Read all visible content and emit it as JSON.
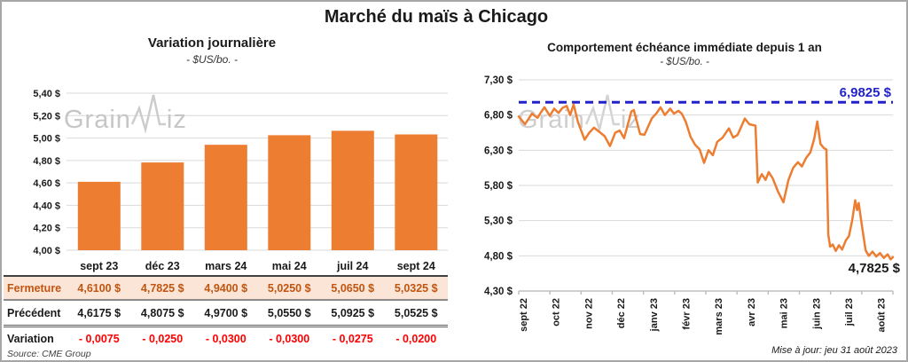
{
  "header": {
    "title": "Marché du maïs à Chicago"
  },
  "footer": {
    "source": "Source: CME Group",
    "updated": "Mise à jour: jeu 31 août 2023"
  },
  "watermark": {
    "part1": "Grain",
    "part2": "iz"
  },
  "colors": {
    "accent_orange": "#ED7D31",
    "reference_blue": "#2222CC",
    "negative_red": "#FF0000",
    "fermeture_bg": "#FBE5D6",
    "fermeture_text": "#C05511",
    "grid": "#D9D9D9",
    "axis": "#BFBFBF",
    "watermark_gray": "#C6C6C6"
  },
  "chart_data": [
    {
      "type": "bar",
      "title": "Variation journalière",
      "subtitle": "- $US/bo. -",
      "categories": [
        "sept 23",
        "déc 23",
        "mars 24",
        "mai 24",
        "juil 24",
        "sept 24"
      ],
      "values": [
        4.61,
        4.7825,
        4.94,
        5.025,
        5.065,
        5.0325
      ],
      "ylim": [
        4.0,
        5.4
      ],
      "ytick_step": 0.2,
      "ytick_labels": [
        "4,00 $",
        "4,20 $",
        "4,40 $",
        "4,60 $",
        "4,80 $",
        "5,00 $",
        "5,20 $",
        "5,40 $"
      ],
      "bar_color": "#ED7D31",
      "grid": "on",
      "legend": "none"
    },
    {
      "type": "line",
      "title": "Comportement échéance immédiate depuis 1 an",
      "subtitle": "- $US/bo. -",
      "x_labels": [
        "sept 22",
        "oct 22",
        "nov 22",
        "déc 22",
        "janv 23",
        "févr 23",
        "mars 23",
        "avr 23",
        "mai 23",
        "juin 23",
        "juil 23",
        "août 23"
      ],
      "x_range_months": [
        0,
        12
      ],
      "ylim": [
        4.3,
        7.3
      ],
      "ytick_step": 0.5,
      "ytick_labels": [
        "4,30 $",
        "4,80 $",
        "5,30 $",
        "5,80 $",
        "6,30 $",
        "6,80 $",
        "7,30 $"
      ],
      "grid": "on",
      "legend": "none",
      "reference_line": {
        "value": 6.9825,
        "label": "6,9825 $",
        "color": "#2222CC",
        "style": "dashed"
      },
      "end_label": "4,7825 $",
      "series": [
        {
          "name": "échéance immédiate",
          "color": "#ED7D31",
          "points": [
            [
              0.0,
              6.78
            ],
            [
              0.2,
              6.67
            ],
            [
              0.42,
              6.82
            ],
            [
              0.6,
              6.76
            ],
            [
              0.71,
              6.84
            ],
            [
              0.82,
              6.91
            ],
            [
              0.99,
              6.79
            ],
            [
              1.13,
              6.89
            ],
            [
              1.27,
              6.83
            ],
            [
              1.39,
              6.9
            ],
            [
              1.53,
              6.93
            ],
            [
              1.64,
              6.8
            ],
            [
              1.75,
              6.95
            ],
            [
              1.89,
              6.7
            ],
            [
              2.1,
              6.45
            ],
            [
              2.25,
              6.55
            ],
            [
              2.4,
              6.62
            ],
            [
              2.6,
              6.55
            ],
            [
              2.74,
              6.5
            ],
            [
              2.91,
              6.36
            ],
            [
              3.08,
              6.55
            ],
            [
              3.22,
              6.58
            ],
            [
              3.36,
              6.47
            ],
            [
              3.59,
              6.85
            ],
            [
              3.67,
              6.87
            ],
            [
              3.87,
              6.53
            ],
            [
              4.01,
              6.52
            ],
            [
              4.24,
              6.75
            ],
            [
              4.4,
              6.83
            ],
            [
              4.52,
              6.91
            ],
            [
              4.66,
              6.8
            ],
            [
              4.83,
              6.89
            ],
            [
              4.95,
              6.82
            ],
            [
              5.09,
              6.86
            ],
            [
              5.2,
              6.82
            ],
            [
              5.33,
              6.7
            ],
            [
              5.48,
              6.49
            ],
            [
              5.62,
              6.38
            ],
            [
              5.77,
              6.31
            ],
            [
              5.91,
              6.12
            ],
            [
              6.05,
              6.3
            ],
            [
              6.19,
              6.23
            ],
            [
              6.33,
              6.42
            ],
            [
              6.5,
              6.48
            ],
            [
              6.7,
              6.61
            ],
            [
              6.84,
              6.48
            ],
            [
              6.98,
              6.52
            ],
            [
              7.21,
              6.75
            ],
            [
              7.35,
              6.67
            ],
            [
              7.55,
              6.65
            ],
            [
              7.62,
              5.84
            ],
            [
              7.75,
              5.96
            ],
            [
              7.87,
              5.88
            ],
            [
              7.97,
              5.99
            ],
            [
              8.1,
              5.9
            ],
            [
              8.27,
              5.71
            ],
            [
              8.44,
              5.56
            ],
            [
              8.6,
              5.88
            ],
            [
              8.75,
              6.05
            ],
            [
              8.9,
              6.13
            ],
            [
              9.03,
              6.07
            ],
            [
              9.16,
              6.19
            ],
            [
              9.3,
              6.27
            ],
            [
              9.42,
              6.46
            ],
            [
              9.52,
              6.71
            ],
            [
              9.62,
              6.39
            ],
            [
              9.73,
              6.33
            ],
            [
              9.81,
              6.31
            ],
            [
              9.87,
              5.1
            ],
            [
              9.93,
              4.93
            ],
            [
              10.01,
              4.96
            ],
            [
              10.11,
              4.87
            ],
            [
              10.21,
              4.95
            ],
            [
              10.31,
              4.89
            ],
            [
              10.43,
              5.02
            ],
            [
              10.53,
              5.08
            ],
            [
              10.63,
              5.3
            ],
            [
              10.73,
              5.59
            ],
            [
              10.79,
              5.45
            ],
            [
              10.84,
              5.55
            ],
            [
              10.96,
              5.17
            ],
            [
              11.06,
              4.88
            ],
            [
              11.16,
              4.8
            ],
            [
              11.28,
              4.86
            ],
            [
              11.4,
              4.79
            ],
            [
              11.52,
              4.84
            ],
            [
              11.64,
              4.77
            ],
            [
              11.76,
              4.82
            ],
            [
              11.86,
              4.75
            ],
            [
              11.93,
              4.7825
            ]
          ]
        }
      ]
    }
  ],
  "table": {
    "col_headers": [
      "sept 23",
      "déc 23",
      "mars 24",
      "mai 24",
      "juil 24",
      "sept 24"
    ],
    "rows": [
      {
        "label": "Fermeture",
        "style": "fermeture",
        "values": [
          "4,6100  $",
          "4,7825  $",
          "4,9400  $",
          "5,0250  $",
          "5,0650  $",
          "5,0325  $"
        ]
      },
      {
        "label": "Précédent",
        "style": "precedent",
        "values": [
          "4,6175  $",
          "4,8075  $",
          "4,9700  $",
          "5,0550  $",
          "5,0925  $",
          "5,0525  $"
        ]
      },
      {
        "label": "Variation",
        "style": "variation",
        "values": [
          "- 0,0075",
          "- 0,0250",
          "- 0,0300",
          "- 0,0300",
          "- 0,0275",
          "- 0,0200"
        ]
      }
    ]
  }
}
